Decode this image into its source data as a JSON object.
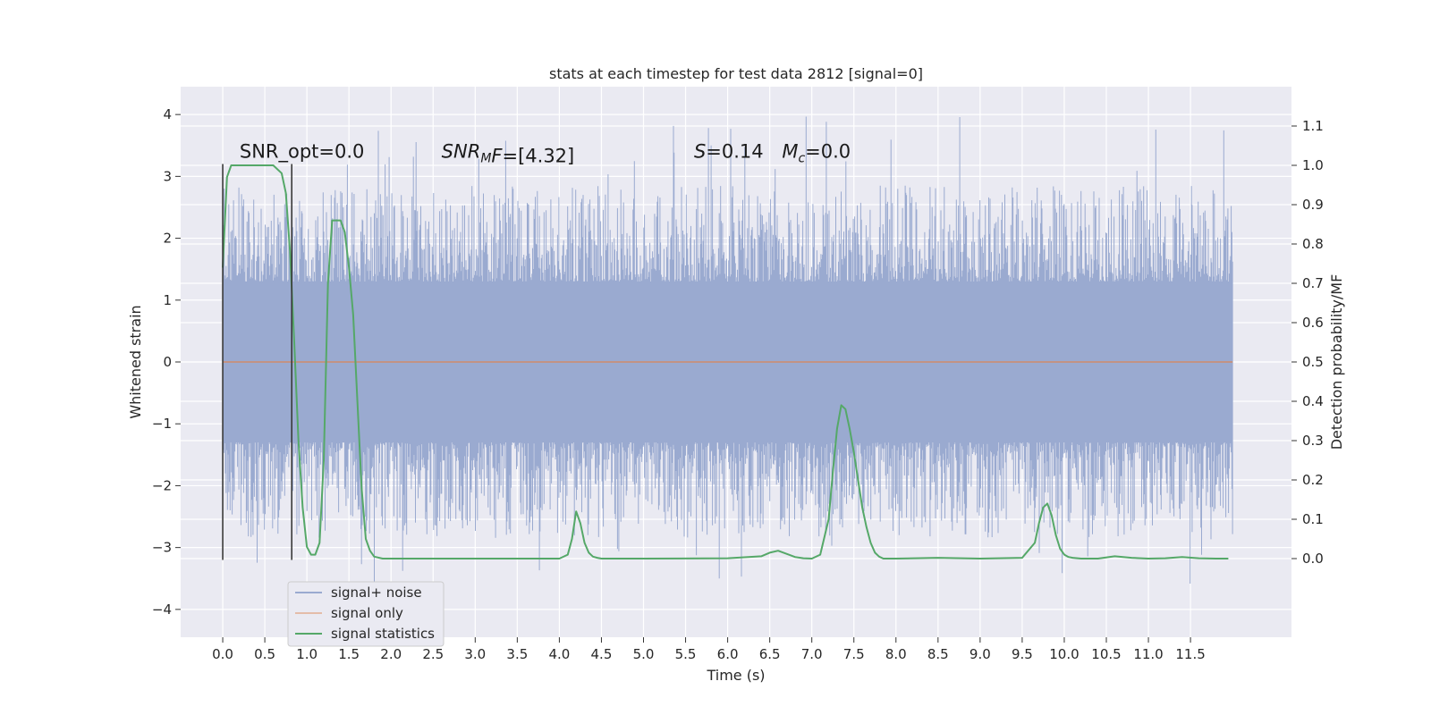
{
  "chart_data": {
    "type": "line",
    "title": "stats at each timestep for test data 2812 [signal=0]",
    "xlabel": "Time (s)",
    "ylabel_left": "Whitened strain",
    "ylabel_right": "Detection probability/MF",
    "xlim": [
      -0.5,
      12.7
    ],
    "ylim_left": [
      -4.45,
      4.45
    ],
    "ylim_right": [
      -0.2,
      1.2
    ],
    "x_ticks": [
      "0.0",
      "0.5",
      "1.0",
      "1.5",
      "2.0",
      "2.5",
      "3.0",
      "3.5",
      "4.0",
      "4.5",
      "5.0",
      "5.5",
      "6.0",
      "6.5",
      "7.0",
      "7.5",
      "8.0",
      "8.5",
      "9.0",
      "9.5",
      "10.0",
      "10.5",
      "11.0",
      "11.5"
    ],
    "y_ticks_left": [
      "−4",
      "−3",
      "−2",
      "−1",
      "0",
      "1",
      "2",
      "3",
      "4"
    ],
    "y_ticks_right": [
      "0.0",
      "0.1",
      "0.2",
      "0.3",
      "0.4",
      "0.5",
      "0.6",
      "0.7",
      "0.8",
      "0.9",
      "1.0",
      "1.1"
    ],
    "grid": true,
    "legend_position": "lower-left",
    "annotations": [
      {
        "text": "SNR_opt=0.0",
        "x": 0.2,
        "y": 3.3
      },
      {
        "html_parts": [
          "SNR",
          "M",
          "F=[4.32]"
        ],
        "x": 2.6,
        "y": 3.3
      },
      {
        "html_parts": [
          "S",
          "=0.14   ",
          "M",
          "c",
          "=0.0"
        ],
        "x": 5.6,
        "y": 3.3
      }
    ],
    "vertical_markers": [
      {
        "x": 0.0,
        "y_range": [
          -3.2,
          3.2
        ]
      },
      {
        "x": 0.82,
        "y_range": [
          -3.2,
          3.2
        ]
      }
    ],
    "series": [
      {
        "name": "signal+ noise",
        "color": "#4c72b0",
        "axis": "left",
        "description_values": {
          "x_range": [
            0.0,
            12.0
          ],
          "band_core": [
            -1.3,
            1.3
          ],
          "envelope": [
            -3.7,
            4.05
          ]
        }
      },
      {
        "name": "signal only",
        "color": "#dd8452",
        "axis": "left",
        "x": [
          0.0,
          12.0
        ],
        "y": [
          0.0,
          0.0
        ]
      },
      {
        "name": "signal statistics",
        "color": "#55a868",
        "axis": "right",
        "x": [
          0.0,
          0.05,
          0.1,
          0.15,
          0.2,
          0.3,
          0.4,
          0.5,
          0.6,
          0.7,
          0.75,
          0.8,
          0.85,
          0.9,
          0.95,
          1.0,
          1.05,
          1.1,
          1.15,
          1.2,
          1.25,
          1.3,
          1.35,
          1.4,
          1.45,
          1.5,
          1.55,
          1.6,
          1.65,
          1.7,
          1.75,
          1.8,
          1.9,
          2.0,
          2.5,
          3.0,
          3.5,
          4.0,
          4.1,
          4.15,
          4.2,
          4.25,
          4.3,
          4.35,
          4.4,
          4.45,
          4.5,
          4.6,
          5.0,
          6.0,
          6.4,
          6.5,
          6.6,
          6.7,
          6.8,
          6.9,
          7.0,
          7.1,
          7.2,
          7.25,
          7.3,
          7.35,
          7.4,
          7.45,
          7.5,
          7.55,
          7.6,
          7.65,
          7.7,
          7.75,
          7.8,
          7.85,
          7.9,
          8.0,
          8.5,
          9.0,
          9.5,
          9.65,
          9.7,
          9.75,
          9.8,
          9.85,
          9.9,
          9.95,
          10.0,
          10.05,
          10.1,
          10.2,
          10.4,
          10.6,
          10.8,
          11.0,
          11.2,
          11.4,
          11.6,
          11.8,
          11.95
        ],
        "y": [
          0.74,
          0.97,
          1.0,
          1.0,
          1.0,
          1.0,
          1.0,
          1.0,
          1.0,
          0.98,
          0.93,
          0.78,
          0.55,
          0.3,
          0.13,
          0.03,
          0.01,
          0.01,
          0.04,
          0.25,
          0.7,
          0.86,
          0.86,
          0.86,
          0.83,
          0.74,
          0.62,
          0.4,
          0.18,
          0.05,
          0.02,
          0.005,
          0.0,
          0.0,
          0.0,
          0.0,
          0.0,
          0.0,
          0.01,
          0.05,
          0.12,
          0.09,
          0.04,
          0.015,
          0.005,
          0.002,
          0.0,
          0.0,
          0.0,
          0.001,
          0.006,
          0.015,
          0.02,
          0.012,
          0.004,
          0.001,
          0.0,
          0.01,
          0.1,
          0.22,
          0.33,
          0.39,
          0.38,
          0.33,
          0.27,
          0.2,
          0.13,
          0.08,
          0.04,
          0.015,
          0.005,
          0.0,
          0.0,
          0.0,
          0.002,
          0.0,
          0.002,
          0.04,
          0.09,
          0.13,
          0.14,
          0.11,
          0.06,
          0.025,
          0.01,
          0.004,
          0.002,
          0.0,
          0.0,
          0.006,
          0.002,
          0.0,
          0.001,
          0.004,
          0.001,
          0.0,
          0.0
        ]
      }
    ]
  },
  "colors": {
    "plot_bg": "#eaeaf2",
    "grid": "#ffffff",
    "noise": "#9aaad0",
    "signal": "#dd8452",
    "stats": "#55a868",
    "marker": "#3a3a3a"
  }
}
